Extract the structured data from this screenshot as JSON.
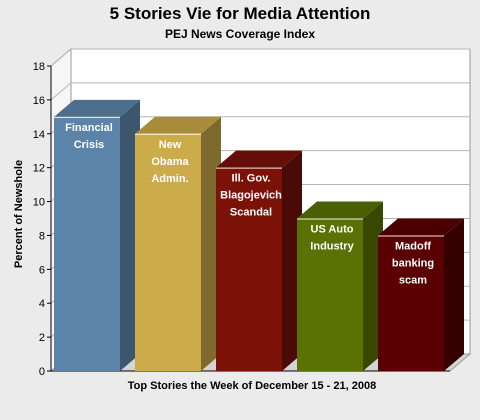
{
  "chart_data": {
    "type": "bar",
    "title": "5 Stories Vie for Media Attention",
    "subtitle": "PEJ News Coverage Index",
    "ylabel": "Percent of Newshole",
    "xlabel": "Top Stories the Week of December 15 - 21, 2008",
    "ylim": [
      0,
      18
    ],
    "yticks": [
      0,
      2,
      4,
      6,
      8,
      10,
      12,
      14,
      16,
      18
    ],
    "grid": true,
    "categories": [
      [
        "Financial",
        "Crisis"
      ],
      [
        "New",
        "Obama",
        "Admin."
      ],
      [
        "Ill. Gov.",
        "Blagojevich",
        "Scandal"
      ],
      [
        "US Auto",
        "Industry"
      ],
      [
        "Madoff",
        "banking",
        "scam"
      ]
    ],
    "values": [
      15,
      14,
      12,
      9,
      8
    ],
    "colors": [
      {
        "front": "#5b84a8",
        "side": "#3c566e",
        "top": "#4c6f8e"
      },
      {
        "front": "#ccab4b",
        "side": "#7f6a2e",
        "top": "#a98d3c"
      },
      {
        "front": "#7c1108",
        "side": "#4a0a05",
        "top": "#650e07"
      },
      {
        "front": "#5a7204",
        "side": "#384702",
        "top": "#4a5e03"
      },
      {
        "front": "#5a0002",
        "side": "#350001",
        "top": "#4a0001"
      }
    ]
  }
}
